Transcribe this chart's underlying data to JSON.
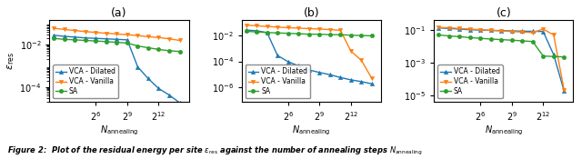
{
  "x_values": [
    4,
    8,
    16,
    32,
    64,
    128,
    256,
    512,
    1024,
    2048,
    4096,
    8192,
    16384
  ],
  "panel_a": {
    "title": "(a)",
    "vca_dilated": [
      0.028,
      0.025,
      0.023,
      0.021,
      0.02,
      0.019,
      0.018,
      0.017,
      0.0009,
      0.00025,
      8.5e-05,
      4.2e-05,
      1.8e-05
    ],
    "vca_vanilla": [
      0.06,
      0.053,
      0.047,
      0.042,
      0.038,
      0.035,
      0.032,
      0.03,
      0.027,
      0.024,
      0.022,
      0.019,
      0.016
    ],
    "sa": [
      0.02,
      0.018,
      0.017,
      0.016,
      0.015,
      0.014,
      0.013,
      0.012,
      0.0088,
      0.0072,
      0.006,
      0.0052,
      0.0048
    ],
    "ylim": [
      2e-05,
      0.15
    ],
    "yticks": [
      0.0001,
      0.01
    ],
    "ylabel": "$\\epsilon_{\\rm res}$"
  },
  "panel_b": {
    "title": "(b)",
    "vca_dilated": [
      0.025,
      0.022,
      0.016,
      0.00028,
      9.5e-05,
      4.5e-05,
      2.2e-05,
      1.4e-05,
      9.5e-06,
      5.8e-06,
      3.8e-06,
      2.8e-06,
      1.9e-06
    ],
    "vca_vanilla": [
      0.06,
      0.053,
      0.047,
      0.042,
      0.038,
      0.035,
      0.032,
      0.03,
      0.027,
      0.024,
      0.0006,
      0.00012,
      4.8e-06
    ],
    "sa": [
      0.02,
      0.018,
      0.016,
      0.015,
      0.014,
      0.013,
      0.012,
      0.012,
      0.011,
      0.011,
      0.01,
      0.0095,
      0.009
    ],
    "ylim": [
      8e-08,
      0.15
    ],
    "yticks": [
      1e-06,
      0.0001,
      0.01
    ],
    "ylabel": ""
  },
  "panel_c": {
    "title": "(c)",
    "vca_dilated": [
      0.13,
      0.12,
      0.11,
      0.1,
      0.096,
      0.092,
      0.088,
      0.085,
      0.082,
      0.08,
      0.078,
      0.003,
      1.8e-05
    ],
    "vca_vanilla": [
      0.14,
      0.13,
      0.12,
      0.11,
      0.1,
      0.092,
      0.085,
      0.078,
      0.072,
      0.068,
      0.11,
      0.048,
      2.1e-05
    ],
    "sa": [
      0.048,
      0.042,
      0.038,
      0.033,
      0.03,
      0.027,
      0.025,
      0.023,
      0.021,
      0.019,
      0.0025,
      0.0023,
      0.0022
    ],
    "ylim": [
      4e-06,
      0.4
    ],
    "yticks": [
      1e-05,
      0.001,
      0.1
    ],
    "ylabel": ""
  },
  "colors": {
    "vca_dilated": "#1f77b4",
    "vca_vanilla": "#ff7f0e",
    "sa": "#2ca02c"
  },
  "xtick_positions": [
    64,
    512,
    4096
  ],
  "xtick_labels": [
    "$2^6$",
    "$2^9$",
    "$2^{12}$"
  ],
  "xlabel": "$N_{\\rm annealing}$",
  "caption": "Figure 2:  Plot of the residual energy per site $\\epsilon_{\\rm res}$ against the number of annealing steps $N_{\\rm annealing}$"
}
